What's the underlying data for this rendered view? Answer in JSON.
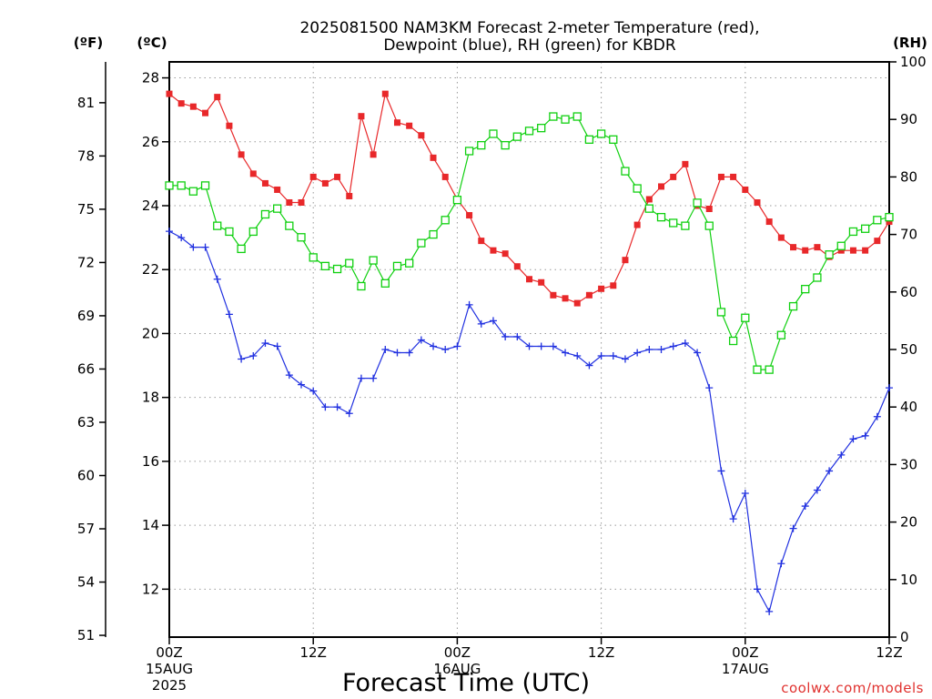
{
  "title_lines": [
    "2025081500 NAM3KM Forecast 2-meter Temperature (red),",
    "Dewpoint (blue), RH (green) for KBDR"
  ],
  "credit": "coolwx.com/models",
  "colors": {
    "temperature": "#e8282a",
    "dewpoint": "#2030e0",
    "rh": "#10d010",
    "grid": "#999999",
    "credit": "#e0312e"
  },
  "chart_data": {
    "type": "line",
    "title": "2025081500 NAM3KM Forecast 2-meter Temperature (red), Dewpoint (blue), RH (green) for KBDR",
    "xlabel": "Forecast Time (UTC)",
    "x_range_hours": [
      0,
      60
    ],
    "x_step_hours": 1,
    "x_ticks": [
      {
        "hour": 0,
        "lines": [
          "00Z",
          "15AUG",
          "2025"
        ]
      },
      {
        "hour": 12,
        "lines": [
          "12Z"
        ]
      },
      {
        "hour": 24,
        "lines": [
          "00Z",
          "16AUG"
        ]
      },
      {
        "hour": 36,
        "lines": [
          "12Z"
        ]
      },
      {
        "hour": 48,
        "lines": [
          "00Z",
          "17AUG"
        ]
      },
      {
        "hour": 60,
        "lines": [
          "12Z"
        ]
      }
    ],
    "grid": true,
    "axes": {
      "celsius": {
        "unit": "(ºC)",
        "range": [
          10.5,
          28.5
        ],
        "ticks": [
          "12",
          "14",
          "16",
          "18",
          "20",
          "22",
          "24",
          "26",
          "28"
        ]
      },
      "fahrenheit": {
        "unit": "(ºF)",
        "ticks": [
          "51",
          "54",
          "57",
          "60",
          "63",
          "66",
          "69",
          "72",
          "75",
          "78",
          "81"
        ]
      },
      "rh": {
        "unit": "(RH)",
        "range": [
          0,
          100
        ],
        "ticks": [
          "0",
          "10",
          "20",
          "30",
          "40",
          "50",
          "60",
          "70",
          "80",
          "90",
          "100"
        ]
      }
    },
    "series": [
      {
        "key": "temperature",
        "axis": "celsius",
        "marker": "filled-square",
        "values": [
          27.5,
          27.2,
          27.1,
          26.9,
          27.4,
          26.5,
          25.6,
          25.0,
          24.7,
          24.5,
          24.1,
          24.1,
          24.9,
          24.7,
          24.9,
          24.3,
          26.8,
          25.6,
          27.5,
          26.6,
          26.5,
          26.2,
          25.5,
          24.9,
          24.2,
          23.7,
          22.9,
          22.6,
          22.5,
          22.1,
          21.7,
          21.6,
          21.2,
          21.1,
          20.95,
          21.2,
          21.4,
          21.5,
          22.3,
          23.4,
          24.2,
          24.6,
          24.9,
          25.3,
          24.0,
          23.9,
          24.9,
          24.9,
          24.5,
          24.1,
          23.5,
          23.0,
          22.7,
          22.6,
          22.7,
          22.4,
          22.6,
          22.6,
          22.6,
          22.9,
          23.5
        ]
      },
      {
        "key": "dewpoint",
        "axis": "celsius",
        "marker": "plus",
        "values": [
          23.2,
          23.0,
          22.7,
          22.7,
          21.7,
          20.6,
          19.2,
          19.3,
          19.7,
          19.6,
          18.7,
          18.4,
          18.2,
          17.7,
          17.7,
          17.5,
          18.6,
          18.6,
          19.5,
          19.4,
          19.4,
          19.8,
          19.6,
          19.5,
          19.6,
          20.9,
          20.3,
          20.4,
          19.9,
          19.9,
          19.6,
          19.6,
          19.6,
          19.4,
          19.3,
          19.0,
          19.3,
          19.3,
          19.2,
          19.4,
          19.5,
          19.5,
          19.6,
          19.7,
          19.4,
          18.3,
          15.7,
          14.2,
          15.0,
          12.0,
          11.3,
          12.8,
          13.9,
          14.6,
          15.1,
          15.7,
          16.2,
          16.7,
          16.8,
          17.4,
          18.3
        ]
      },
      {
        "key": "rh",
        "axis": "rh",
        "marker": "open-square",
        "values": [
          78.5,
          78.5,
          77.5,
          78.5,
          71.5,
          70.5,
          67.5,
          70.5,
          73.5,
          74.5,
          71.5,
          69.5,
          66,
          64.5,
          64,
          65,
          61,
          65.5,
          61.5,
          64.5,
          65,
          68.5,
          70,
          72.5,
          76,
          84.5,
          85.5,
          87.5,
          85.5,
          87,
          88,
          88.5,
          90.5,
          90,
          90.5,
          86.5,
          87.5,
          86.5,
          81,
          78,
          74.5,
          73,
          72,
          71.5,
          75.5,
          71.5,
          56.5,
          51.5,
          55.5,
          46.5,
          46.5,
          52.5,
          57.5,
          60.5,
          62.5,
          66.5,
          68,
          70.5,
          71,
          72.5,
          73
        ]
      }
    ]
  }
}
